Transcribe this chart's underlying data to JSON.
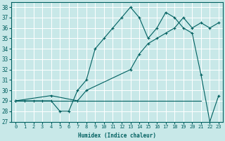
{
  "background_color": "#c8e8e8",
  "grid_color": "#ffffff",
  "line_color": "#006060",
  "ylabel_values": [
    27,
    28,
    29,
    30,
    31,
    32,
    33,
    34,
    35,
    36,
    37,
    38
  ],
  "xlabel_values": [
    0,
    1,
    2,
    3,
    4,
    5,
    6,
    7,
    8,
    9,
    10,
    11,
    12,
    13,
    14,
    15,
    16,
    17,
    18,
    19,
    20,
    21,
    22,
    23
  ],
  "xlabel": "Humidex (Indice chaleur)",
  "xlim": [
    -0.5,
    23.5
  ],
  "ylim": [
    27,
    38.5
  ],
  "line1_x": [
    0,
    1,
    2,
    3,
    4,
    5,
    6,
    7,
    8,
    9,
    10,
    11,
    12,
    13,
    14,
    15,
    16,
    17,
    18,
    19,
    20,
    21,
    22,
    23
  ],
  "line1_y": [
    29,
    29,
    29,
    29,
    29,
    28,
    28,
    30,
    31,
    34,
    35,
    36,
    37,
    38,
    37,
    35,
    36,
    37.5,
    37,
    36,
    35.5,
    31.5,
    27,
    29.5
  ],
  "line2_x": [
    0,
    4,
    7,
    8,
    13,
    14,
    15,
    16,
    17,
    18,
    19,
    20,
    21,
    22,
    23
  ],
  "line2_y": [
    29,
    29.5,
    29,
    30,
    32,
    33.5,
    34.5,
    35,
    35.5,
    36,
    37,
    36,
    36.5,
    36,
    36.5
  ],
  "line3_x": [
    0,
    21
  ],
  "line3_y": [
    29,
    29
  ],
  "marker_size": 2.5
}
